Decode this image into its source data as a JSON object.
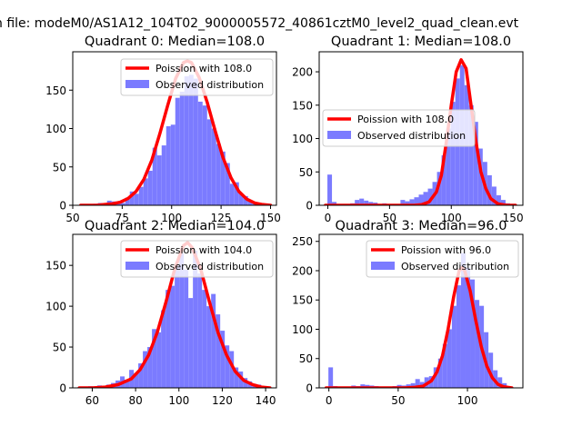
{
  "figure": {
    "suptitle": "n file: modeM0/AS1A12_104T02_9000005572_40861cztM0_level2_quad_clean.evt",
    "colors": {
      "hist": "#7b7bff",
      "poisson": "#ff0000",
      "axes": "#000000",
      "background": "#ffffff"
    }
  },
  "chart_data": [
    {
      "type": "bar",
      "title": "Quadrant 0: Median=108.0",
      "median": 108.0,
      "legend": {
        "position": "top-right",
        "entries": [
          "Poission with 108.0",
          "Observed distribution"
        ]
      },
      "xlim": [
        50,
        153
      ],
      "ylim": [
        0,
        200
      ],
      "xticks": [
        50,
        75,
        100,
        125,
        150
      ],
      "yticks": [
        0,
        50,
        100,
        150
      ],
      "bin_width": 2.3,
      "histogram": {
        "x": [
          57,
          59.3,
          61.6,
          63.9,
          66.2,
          68.5,
          70.8,
          73.1,
          75.4,
          77.7,
          80,
          82.3,
          84.6,
          86.9,
          89.2,
          91.5,
          93.8,
          96.1,
          98.4,
          100.7,
          103,
          105.3,
          107.6,
          109.9,
          112.2,
          114.5,
          116.8,
          119.1,
          121.4,
          123.7,
          126,
          128.3,
          130.6,
          132.9,
          135.2,
          137.5,
          139.8,
          142.1,
          144.4,
          146.7,
          149
        ],
        "values": [
          1,
          1,
          2,
          3,
          1,
          6,
          5,
          4,
          3,
          10,
          18,
          15,
          24,
          35,
          45,
          75,
          65,
          78,
          103,
          105,
          140,
          148,
          168,
          170,
          165,
          135,
          130,
          112,
          100,
          80,
          70,
          55,
          28,
          30,
          15,
          12,
          5,
          4,
          3,
          2,
          1
        ]
      },
      "poisson": {
        "x": [
          54,
          58,
          62,
          66,
          70,
          74,
          78,
          82,
          86,
          90,
          94,
          98,
          102,
          106,
          108,
          110,
          114,
          118,
          122,
          126,
          130,
          134,
          138,
          142,
          146,
          150
        ],
        "values": [
          0,
          0,
          0,
          1,
          2,
          4,
          9,
          18,
          34,
          59,
          93,
          130,
          165,
          186,
          188,
          186,
          166,
          134,
          97,
          62,
          36,
          18,
          8,
          3,
          1,
          0
        ]
      }
    },
    {
      "type": "bar",
      "title": "Quadrant 1: Median=108.0",
      "median": 108.0,
      "legend": {
        "position": "center-left",
        "entries": [
          "Poission with 108.0",
          "Observed distribution"
        ]
      },
      "xlim": [
        -7,
        158
      ],
      "ylim": [
        0,
        230
      ],
      "xticks": [
        0,
        50,
        100,
        150
      ],
      "yticks": [
        0,
        50,
        100,
        150,
        200
      ],
      "bin_width": 3.7,
      "histogram": {
        "x": [
          1.5,
          5.2,
          8.9,
          12.6,
          16.3,
          20,
          23.7,
          27.4,
          31.1,
          34.8,
          38.5,
          42.2,
          45.9,
          49.6,
          53.3,
          57,
          60.7,
          64.4,
          68.1,
          71.8,
          75.5,
          79.2,
          82.9,
          86.6,
          90.3,
          94,
          97.7,
          101.4,
          105.1,
          108.8,
          112.5,
          116.2,
          119.9,
          123.6,
          127.3,
          131,
          134.7,
          138.4,
          142.1,
          145.8,
          149.5
        ],
        "values": [
          46,
          5,
          1,
          0,
          2,
          3,
          8,
          10,
          7,
          5,
          4,
          1,
          3,
          2,
          1,
          2,
          8,
          6,
          9,
          12,
          16,
          20,
          25,
          35,
          50,
          75,
          115,
          155,
          190,
          210,
          180,
          150,
          125,
          85,
          65,
          45,
          28,
          15,
          8,
          3,
          1
        ]
      },
      "poisson": {
        "x": [
          -2,
          10,
          20,
          30,
          40,
          50,
          60,
          70,
          76,
          82,
          88,
          92,
          96,
          100,
          104,
          108,
          112,
          116,
          120,
          124,
          128,
          132,
          138,
          145,
          152
        ],
        "values": [
          0,
          0,
          0,
          0,
          0,
          0,
          0,
          0,
          1,
          5,
          20,
          45,
          95,
          150,
          200,
          218,
          205,
          150,
          95,
          50,
          25,
          10,
          2,
          0,
          0
        ]
      }
    },
    {
      "type": "bar",
      "title": "Quadrant 2: Median=104.0",
      "median": 104.0,
      "legend": {
        "position": "top-right",
        "entries": [
          "Poission with 104.0",
          "Observed distribution"
        ]
      },
      "xlim": [
        51,
        145
      ],
      "ylim": [
        0,
        188
      ],
      "xticks": [
        60,
        80,
        100,
        120,
        140
      ],
      "yticks": [
        0,
        50,
        100,
        150
      ],
      "bin_width": 2.1,
      "histogram": {
        "x": [
          55,
          57.1,
          59.2,
          61.3,
          63.4,
          65.5,
          67.6,
          69.7,
          71.8,
          73.9,
          76,
          78.1,
          80.2,
          82.3,
          84.4,
          86.5,
          88.6,
          90.7,
          92.8,
          94.9,
          97,
          99.1,
          101.2,
          103.3,
          105.4,
          107.5,
          109.6,
          111.7,
          113.8,
          115.9,
          118,
          120.1,
          122.2,
          124.3,
          126.4,
          128.5,
          130.6,
          132.7,
          134.8,
          136.9,
          139
        ],
        "values": [
          1,
          1,
          2,
          1,
          3,
          2,
          4,
          6,
          9,
          14,
          10,
          22,
          18,
          30,
          45,
          50,
          72,
          68,
          95,
          120,
          125,
          150,
          165,
          145,
          110,
          168,
          140,
          120,
          100,
          115,
          90,
          70,
          52,
          45,
          25,
          20,
          12,
          8,
          5,
          4,
          2
        ]
      },
      "poisson": {
        "x": [
          54,
          60,
          66,
          72,
          78,
          82,
          86,
          90,
          94,
          98,
          102,
          104,
          106,
          110,
          114,
          118,
          122,
          126,
          130,
          134,
          138,
          142
        ],
        "values": [
          0,
          0,
          1,
          4,
          11,
          22,
          40,
          68,
          105,
          145,
          174,
          178,
          172,
          146,
          106,
          68,
          40,
          20,
          9,
          4,
          1,
          0
        ]
      }
    },
    {
      "type": "bar",
      "title": "Quadrant 3: Median=96.0",
      "median": 96.0,
      "legend": {
        "position": "top-right",
        "entries": [
          "Poission with 96.0",
          "Observed distribution"
        ]
      },
      "xlim": [
        -7,
        140
      ],
      "ylim": [
        0,
        262
      ],
      "xticks": [
        0,
        50,
        100
      ],
      "yticks": [
        0,
        50,
        100,
        150,
        200,
        250
      ],
      "bin_width": 3.3,
      "histogram": {
        "x": [
          1.3,
          4.6,
          7.9,
          11.2,
          14.5,
          17.8,
          21.1,
          24.4,
          27.7,
          31,
          34.3,
          37.6,
          40.9,
          44.2,
          47.5,
          50.8,
          54.1,
          57.4,
          60.7,
          64,
          67.3,
          70.6,
          73.9,
          77.2,
          80.5,
          83.8,
          87.1,
          90.4,
          93.7,
          97,
          100.3,
          103.6,
          106.9,
          110.2,
          113.5,
          116.8,
          120.1,
          123.4,
          126.7,
          130
        ],
        "values": [
          35,
          3,
          1,
          1,
          2,
          4,
          3,
          6,
          5,
          4,
          3,
          2,
          1,
          2,
          3,
          5,
          4,
          6,
          8,
          15,
          10,
          18,
          20,
          35,
          50,
          75,
          100,
          140,
          175,
          230,
          205,
          185,
          150,
          140,
          95,
          60,
          30,
          18,
          8,
          3
        ]
      },
      "poisson": {
        "x": [
          -2,
          20,
          40,
          55,
          62,
          68,
          74,
          78,
          82,
          86,
          90,
          94,
          96,
          98,
          102,
          106,
          110,
          114,
          118,
          122,
          126,
          132
        ],
        "values": [
          0,
          0,
          0,
          0,
          1,
          3,
          12,
          27,
          55,
          100,
          155,
          200,
          205,
          200,
          165,
          115,
          70,
          37,
          17,
          6,
          2,
          0
        ]
      }
    }
  ]
}
